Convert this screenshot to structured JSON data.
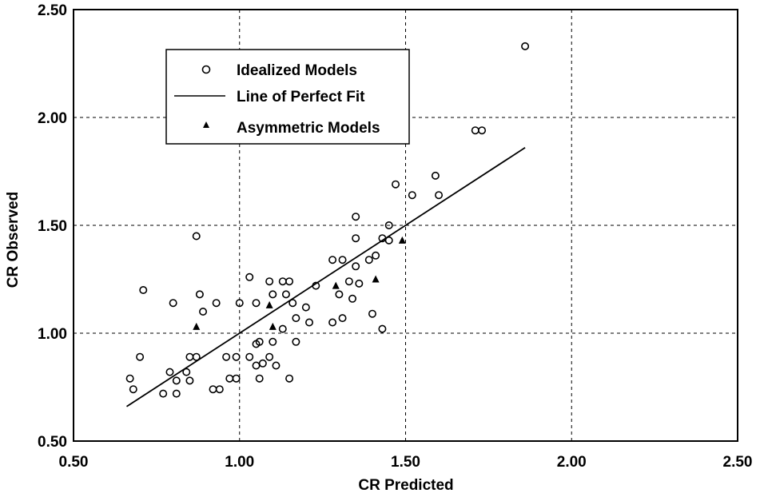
{
  "chart_data": {
    "type": "scatter",
    "xlabel": "CR  Predicted",
    "ylabel": "CR  Observed",
    "xlim": [
      0.5,
      2.5
    ],
    "ylim": [
      0.5,
      2.5
    ],
    "x_ticks": [
      "0.50",
      "1.00",
      "1.50",
      "2.00",
      "2.50"
    ],
    "y_ticks": [
      "0.50",
      "1.00",
      "1.50",
      "2.00",
      "2.50"
    ],
    "grid": true,
    "legend_position": "top-left",
    "legend": [
      "Idealized Models",
      "Line of Perfect Fit",
      "Asymmetric Models"
    ],
    "series": [
      {
        "name": "Idealized Models",
        "marker": "circle",
        "points": [
          [
            0.67,
            0.79
          ],
          [
            0.68,
            0.74
          ],
          [
            0.7,
            0.89
          ],
          [
            0.71,
            1.2
          ],
          [
            0.77,
            0.72
          ],
          [
            0.79,
            0.82
          ],
          [
            0.8,
            1.14
          ],
          [
            0.81,
            0.78
          ],
          [
            0.81,
            0.72
          ],
          [
            0.84,
            0.82
          ],
          [
            0.85,
            0.89
          ],
          [
            0.85,
            0.78
          ],
          [
            0.87,
            0.89
          ],
          [
            0.87,
            1.45
          ],
          [
            0.88,
            1.18
          ],
          [
            0.89,
            1.1
          ],
          [
            0.92,
            0.74
          ],
          [
            0.93,
            1.14
          ],
          [
            0.94,
            0.74
          ],
          [
            0.96,
            0.89
          ],
          [
            0.97,
            0.79
          ],
          [
            0.99,
            0.79
          ],
          [
            0.99,
            0.89
          ],
          [
            1.0,
            1.14
          ],
          [
            1.03,
            0.89
          ],
          [
            1.03,
            1.26
          ],
          [
            1.05,
            0.85
          ],
          [
            1.05,
            0.95
          ],
          [
            1.05,
            1.14
          ],
          [
            1.06,
            0.79
          ],
          [
            1.06,
            0.96
          ],
          [
            1.07,
            0.86
          ],
          [
            1.09,
            0.89
          ],
          [
            1.09,
            1.24
          ],
          [
            1.1,
            1.18
          ],
          [
            1.1,
            0.96
          ],
          [
            1.11,
            0.85
          ],
          [
            1.13,
            1.02
          ],
          [
            1.13,
            1.24
          ],
          [
            1.14,
            1.18
          ],
          [
            1.15,
            1.24
          ],
          [
            1.15,
            0.79
          ],
          [
            1.16,
            1.14
          ],
          [
            1.17,
            1.07
          ],
          [
            1.17,
            0.96
          ],
          [
            1.2,
            1.12
          ],
          [
            1.21,
            1.05
          ],
          [
            1.23,
            1.22
          ],
          [
            1.28,
            1.34
          ],
          [
            1.28,
            1.05
          ],
          [
            1.3,
            1.18
          ],
          [
            1.31,
            1.34
          ],
          [
            1.31,
            1.07
          ],
          [
            1.33,
            1.24
          ],
          [
            1.34,
            1.16
          ],
          [
            1.35,
            1.54
          ],
          [
            1.35,
            1.44
          ],
          [
            1.35,
            1.31
          ],
          [
            1.36,
            1.23
          ],
          [
            1.39,
            1.34
          ],
          [
            1.4,
            1.09
          ],
          [
            1.41,
            1.36
          ],
          [
            1.43,
            1.02
          ],
          [
            1.43,
            1.44
          ],
          [
            1.45,
            1.43
          ],
          [
            1.45,
            1.5
          ],
          [
            1.47,
            1.69
          ],
          [
            1.52,
            1.64
          ],
          [
            1.59,
            1.73
          ],
          [
            1.6,
            1.64
          ],
          [
            1.71,
            1.94
          ],
          [
            1.73,
            1.94
          ],
          [
            1.86,
            2.33
          ]
        ]
      },
      {
        "name": "Line of Perfect Fit",
        "marker": "line",
        "points": [
          [
            0.66,
            0.66
          ],
          [
            1.86,
            1.86
          ]
        ]
      },
      {
        "name": "Asymmetric Models",
        "marker": "triangle",
        "points": [
          [
            0.87,
            1.03
          ],
          [
            1.09,
            1.13
          ],
          [
            1.1,
            1.03
          ],
          [
            1.29,
            1.22
          ],
          [
            1.41,
            1.25
          ],
          [
            1.49,
            1.43
          ]
        ]
      }
    ]
  }
}
